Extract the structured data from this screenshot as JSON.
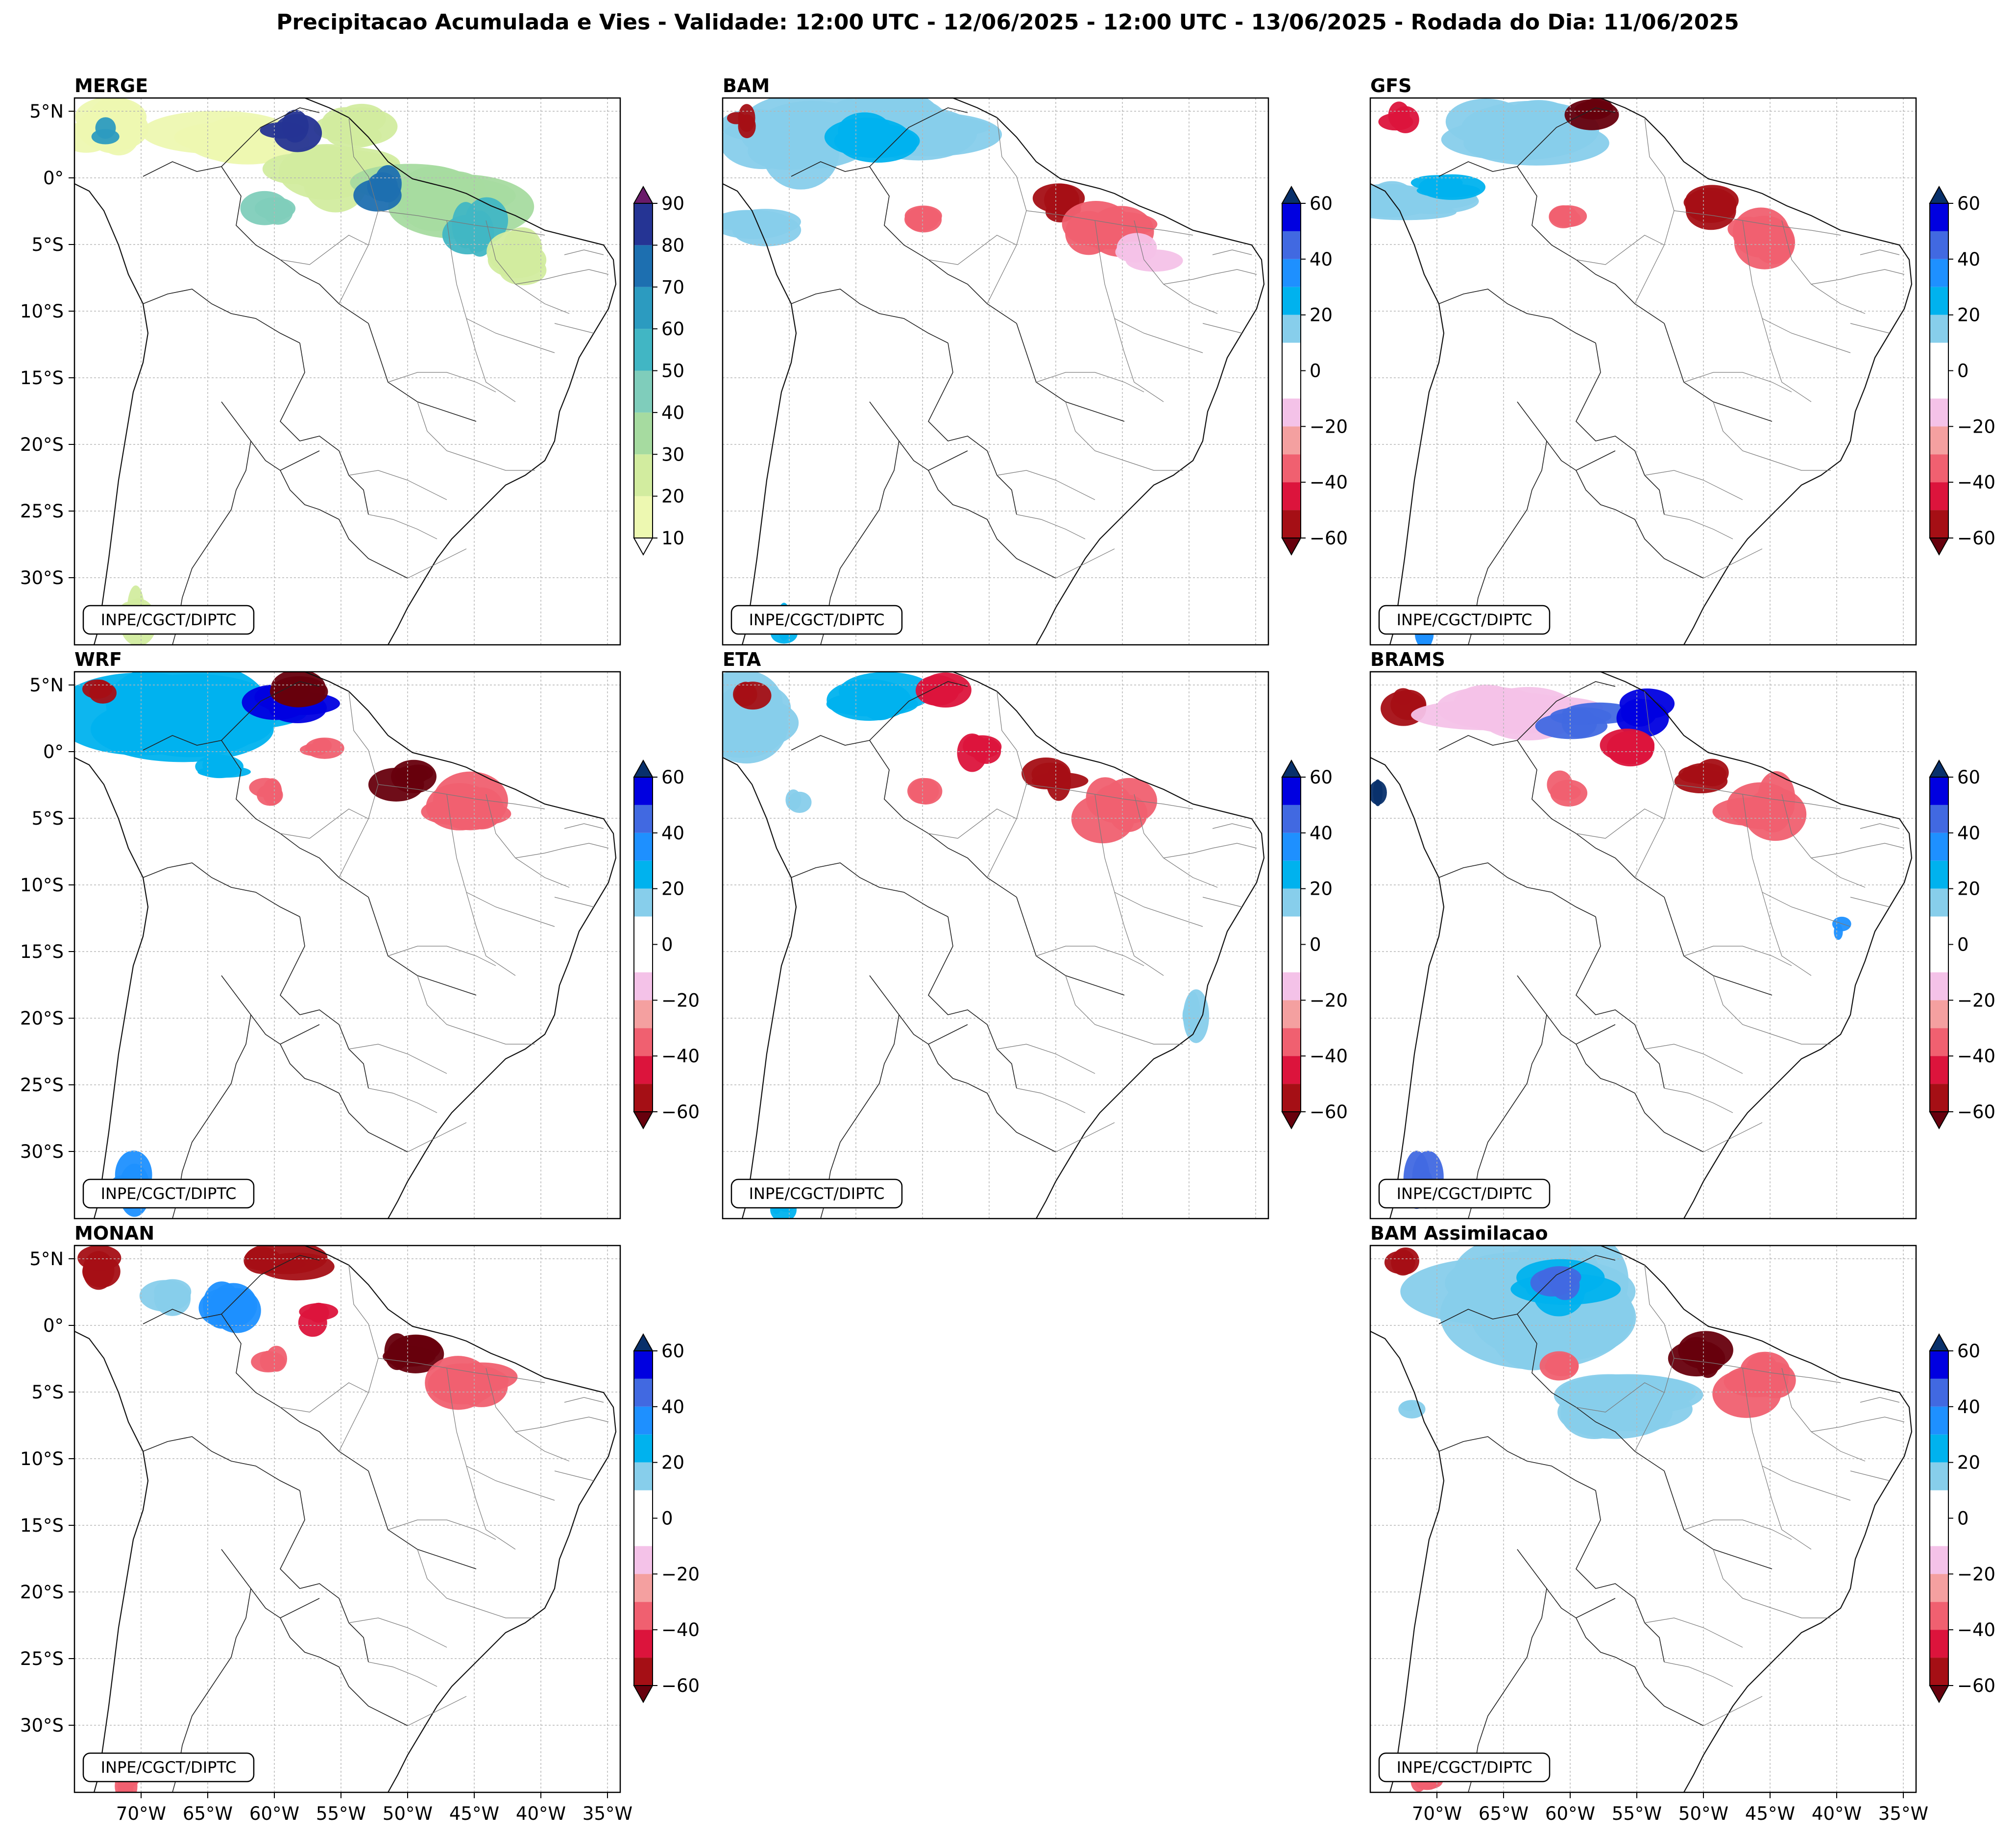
{
  "figure": {
    "title": "Precipitacao Acumulada e Vies - Validade: 12:00 UTC - 12/06/2025 - 12:00 UTC - 13/06/2025 - Rodada do Dia: 11/06/2025",
    "credit": "INPE/CGCT/DIPTC"
  },
  "axes": {
    "lat_ticks": [
      "5°N",
      "0°",
      "5°S",
      "10°S",
      "15°S",
      "20°S",
      "25°S",
      "30°S"
    ],
    "lat_values": [
      5,
      0,
      -5,
      -10,
      -15,
      -20,
      -25,
      -30
    ],
    "lon_ticks": [
      "70°W",
      "65°W",
      "60°W",
      "55°W",
      "50°W",
      "45°W",
      "40°W",
      "35°W"
    ],
    "lon_values": [
      -70,
      -65,
      -60,
      -55,
      -50,
      -45,
      -40,
      -35
    ],
    "lon_range": [
      -75,
      -34
    ],
    "lat_range": [
      -35,
      6
    ]
  },
  "colorbars": {
    "precip": {
      "ticks": [
        "10",
        "20",
        "30",
        "40",
        "50",
        "60",
        "70",
        "80",
        "90"
      ],
      "levels": [
        10,
        20,
        30,
        40,
        50,
        60,
        70,
        80,
        90
      ],
      "colors": [
        "#edf8b1",
        "#d2ec9f",
        "#a6dba0",
        "#7fcdbb",
        "#41b6c4",
        "#2c9bc0",
        "#1d6fb0",
        "#253494",
        "#081d58"
      ],
      "over_color": "#6a1b6a",
      "under_color": "#ffffff"
    },
    "bias": {
      "ticks": [
        "60",
        "40",
        "20",
        "0",
        "−20",
        "−40",
        "−60"
      ],
      "levels": [
        60,
        40,
        20,
        0,
        -20,
        -40,
        -60
      ],
      "colors_top_to_bottom": [
        "#0000e0",
        "#4169e1",
        "#1e90ff",
        "#00b2ee",
        "#87ceeb",
        "#ffffff",
        "#ffffff",
        "#f4c2e8",
        "#f4a0a0",
        "#f06070",
        "#dc143c",
        "#a50f15"
      ],
      "over_color": "#08306b",
      "under_color": "#67000d"
    }
  },
  "panels": [
    {
      "title": "MERGE",
      "kind": "precip"
    },
    {
      "title": "BAM",
      "kind": "bias"
    },
    {
      "title": "GFS",
      "kind": "bias"
    },
    {
      "title": "WRF",
      "kind": "bias"
    },
    {
      "title": "ETA",
      "kind": "bias"
    },
    {
      "title": "BRAMS",
      "kind": "bias"
    },
    {
      "title": "MONAN",
      "kind": "bias"
    },
    {
      "title": "BAM Assimilacao",
      "kind": "bias"
    }
  ]
}
